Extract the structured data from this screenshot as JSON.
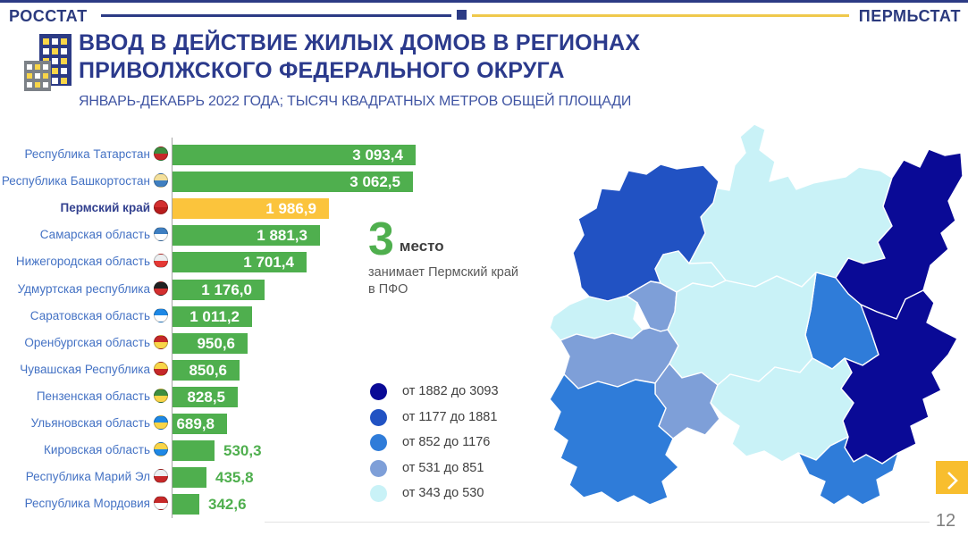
{
  "header": {
    "left_logo": "РОССТАТ",
    "right_logo": "ПЕРМЬСТАТ"
  },
  "title": {
    "line1": "ВВОД В ДЕЙСТВИЕ ЖИЛЫХ ДОМОВ В РЕГИОНАХ",
    "line2": "ПРИВОЛЖСКОГО ФЕДЕРАЛЬНОГО ОКРУГА",
    "subtitle": "ЯНВАРЬ-ДЕКАБРЬ 2022 ГОДА; ТЫСЯЧ КВАДРАТНЫХ МЕТРОВ ОБЩЕЙ ПЛОЩАДИ"
  },
  "rank_note": {
    "number": "3",
    "unit": "место",
    "caption_line1": "занимает Пермский край",
    "caption_line2": "в  ПФО"
  },
  "page_number": "12",
  "colors": {
    "navy_text": "#2B3A8C",
    "bar_green": "#4FAF4E",
    "bar_yellow": "#FBC43C",
    "gold_line": "#EFC94C",
    "next_button": "#F8BE2E"
  },
  "chart_data": {
    "type": "bar",
    "orientation": "horizontal",
    "title": "Ввод в действие жилых домов в регионах Приволжского федерального округа",
    "period": "январь-декабрь 2022 года",
    "unit": "тысяч квадратных метров общей площади",
    "max_value": 3093.4,
    "regions": [
      {
        "key": "tatarstan",
        "name": "Республика Татарстан",
        "value": 3093.4,
        "display": "3 093,4",
        "highlight": false,
        "emblem": [
          "#3E8E3E",
          "#C62828"
        ]
      },
      {
        "key": "bashkortostan",
        "name": "Республика Башкортостан",
        "value": 3062.5,
        "display": "3 062,5",
        "highlight": false,
        "emblem": [
          "#F4E09B",
          "#3F7FC1"
        ]
      },
      {
        "key": "perm",
        "name": "Пермский край",
        "value": 1986.9,
        "display": "1 986,9",
        "highlight": true,
        "emblem": [
          "#D32F2F",
          "#B71C1C"
        ]
      },
      {
        "key": "samara",
        "name": "Самарская область",
        "value": 1881.3,
        "display": "1 881,3",
        "highlight": false,
        "emblem": [
          "#3F7FC1",
          "#FFFFFF"
        ]
      },
      {
        "key": "nizhny",
        "name": "Нижегородская область",
        "value": 1701.4,
        "display": "1 701,4",
        "highlight": false,
        "emblem": [
          "#ECEFF1",
          "#E53935"
        ]
      },
      {
        "key": "udmurtia",
        "name": "Удмуртская республика",
        "value": 1176.0,
        "display": "1 176,0",
        "highlight": false,
        "emblem": [
          "#212121",
          "#D32F2F"
        ]
      },
      {
        "key": "saratov",
        "name": "Саратовская область",
        "value": 1011.2,
        "display": "1 011,2",
        "highlight": false,
        "emblem": [
          "#1E88E5",
          "#FFFFFF"
        ]
      },
      {
        "key": "orenburg",
        "name": "Оренбургская область",
        "value": 950.6,
        "display": "950,6",
        "highlight": false,
        "emblem": [
          "#C62828",
          "#F9D548"
        ]
      },
      {
        "key": "chuvashia",
        "name": "Чувашская Республика",
        "value": 850.6,
        "display": "850,6",
        "highlight": false,
        "emblem": [
          "#F9D548",
          "#C62828"
        ]
      },
      {
        "key": "penza",
        "name": "Пензенская область",
        "value": 828.5,
        "display": "828,5",
        "highlight": false,
        "emblem": [
          "#3E8E3E",
          "#F9D548"
        ]
      },
      {
        "key": "ulyanovsk",
        "name": "Ульяновская область",
        "value": 689.8,
        "display": "689,8",
        "highlight": false,
        "emblem": [
          "#1E88E5",
          "#F9D548"
        ]
      },
      {
        "key": "kirov",
        "name": "Кировская область",
        "value": 530.3,
        "display": "530,3",
        "highlight": false,
        "emblem": [
          "#F9D548",
          "#1E88E5"
        ]
      },
      {
        "key": "mariel",
        "name": "Республика Марий Эл",
        "value": 435.8,
        "display": "435,8",
        "highlight": false,
        "emblem": [
          "#ECEFF1",
          "#C62828"
        ]
      },
      {
        "key": "mordovia",
        "name": "Республика Мордовия",
        "value": 342.6,
        "display": "342,6",
        "highlight": false,
        "emblem": [
          "#C62828",
          "#FFFFFF"
        ]
      }
    ],
    "legend": [
      {
        "label": "от 1882 до 3093",
        "min": 1882,
        "max": 3093,
        "color": "#0A0A96"
      },
      {
        "label": "от 1177 до 1881",
        "min": 1177,
        "max": 1881,
        "color": "#2152C3"
      },
      {
        "label": "от 852 до 1176",
        "min": 852,
        "max": 1176,
        "color": "#2F7CD9"
      },
      {
        "label": "от 531 до 851",
        "min": 531,
        "max": 851,
        "color": "#7E9FD8"
      },
      {
        "label": "от 343 до 530",
        "min": 343,
        "max": 530,
        "color": "#C9F2F7"
      }
    ],
    "legend_position": "left-bottom",
    "grid": false
  }
}
